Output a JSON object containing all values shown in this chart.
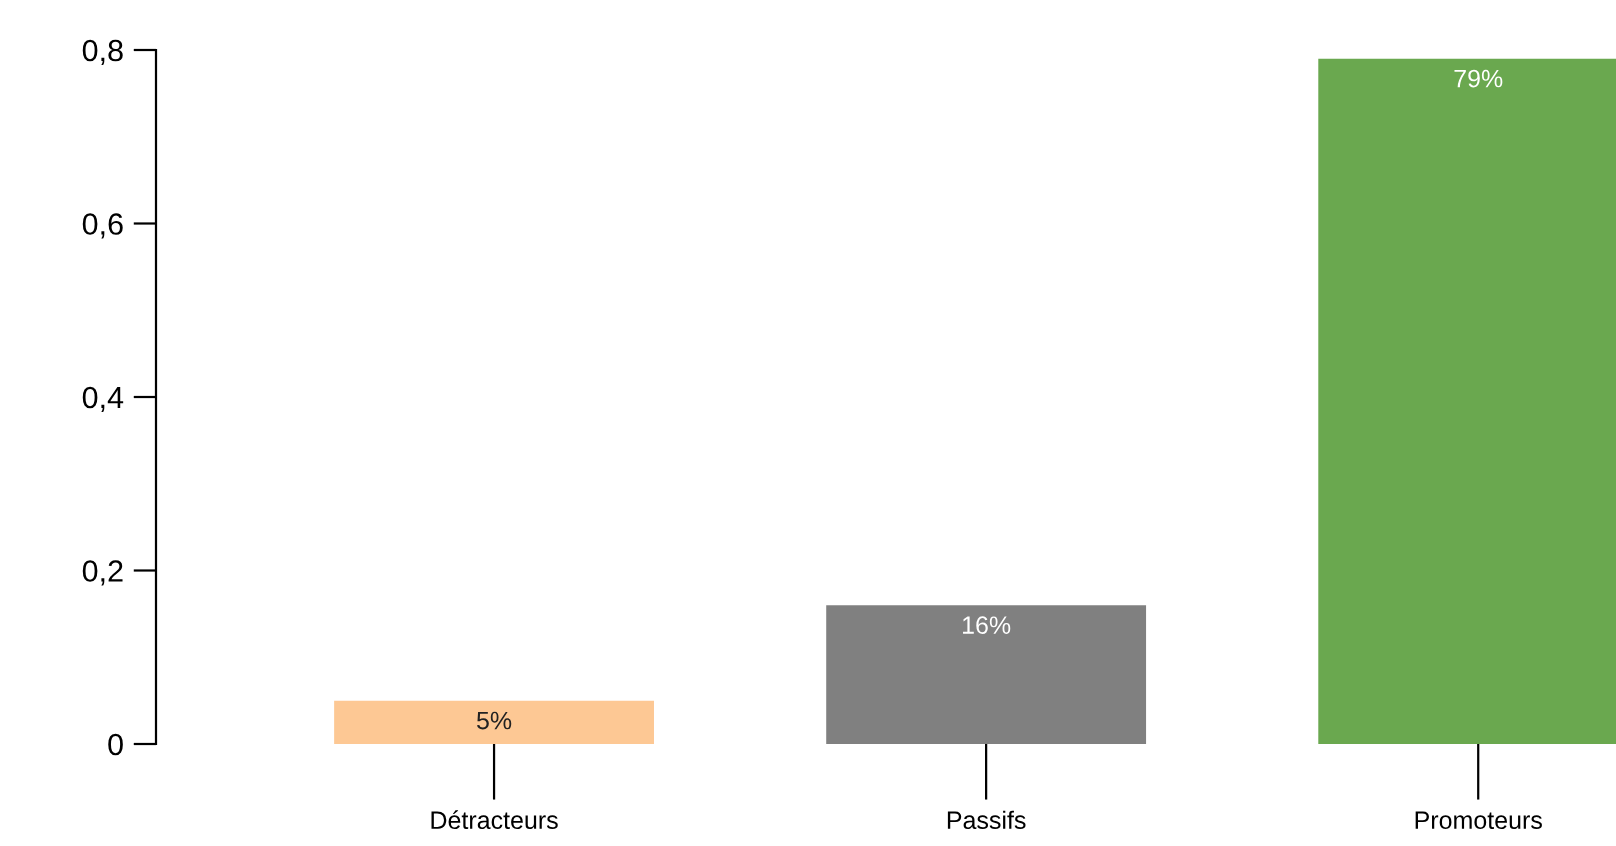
{
  "chart_data": {
    "type": "bar",
    "categories": [
      "Détracteurs",
      "Passifs",
      "Promoteurs"
    ],
    "values": [
      0.05,
      0.16,
      0.79
    ],
    "colors": [
      "#fdc894",
      "#808080",
      "#6aa84f"
    ],
    "value_labels": [
      "5%",
      "16%",
      "79%"
    ],
    "ylim": [
      0,
      0.8
    ],
    "yticks": [
      0,
      {
        "value": 0.2,
        "label": "0,2"
      },
      {
        "value": 0.4,
        "label": "0,4"
      },
      {
        "value": 0.6,
        "label": "0,6"
      },
      {
        "value": 0.8,
        "label": "0,8"
      }
    ],
    "grid": false,
    "legend": false
  }
}
